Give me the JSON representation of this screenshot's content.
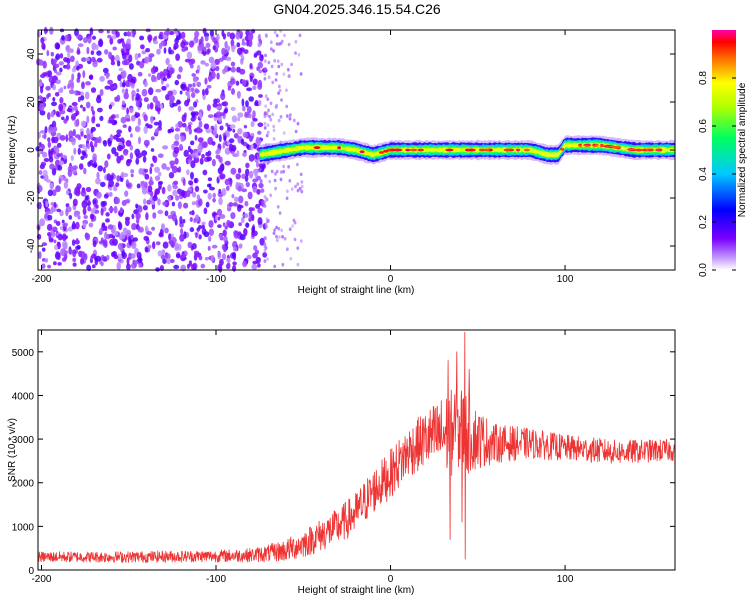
{
  "title": "GN04.2025.346.15.54.C26",
  "chart_data": [
    {
      "id": "spectrogram",
      "type": "heatmap",
      "xlabel": "Height of straight line (km)",
      "ylabel": "Frequency (Hz)",
      "xlim": [
        -202,
        163
      ],
      "ylim": [
        -50,
        50
      ],
      "x_ticks": [
        -200,
        -100,
        0,
        100
      ],
      "x_tick_labels": [
        "-200",
        "-100",
        "0",
        "100"
      ],
      "y_ticks": [
        -40,
        -20,
        0,
        20,
        40
      ],
      "y_tick_labels": [
        "-40",
        "-20",
        "0",
        "20",
        "40"
      ],
      "colorbar": {
        "label": "Normalized spectral amplitude",
        "range": [
          0,
          1
        ],
        "ticks": [
          0,
          0.2,
          0.4,
          0.6,
          0.8
        ],
        "tick_labels": [
          "0.0",
          "0.2",
          "0.4",
          "0.6",
          "0.8"
        ]
      },
      "noise_region_x": [
        -202,
        -72
      ],
      "scattered_edge_x": [
        -72,
        -50
      ],
      "band": {
        "x": [
          -75,
          -50,
          -30,
          -20,
          -10,
          0,
          20,
          40,
          60,
          80,
          90,
          96,
          100,
          120,
          140,
          163
        ],
        "freq_hz": [
          -2,
          1,
          1,
          0,
          -2,
          0,
          0,
          0,
          0,
          0,
          -2,
          -2,
          2,
          2,
          0,
          0
        ],
        "amplitude": [
          0.55,
          0.65,
          0.7,
          0.75,
          0.7,
          0.8,
          0.85,
          0.9,
          0.85,
          0.8,
          0.75,
          0.7,
          0.85,
          0.9,
          0.85,
          0.8
        ]
      }
    },
    {
      "id": "snr",
      "type": "line",
      "xlabel": "Height of straight line (km)",
      "ylabel": "SNR (10 * v/v)",
      "xlim": [
        -202,
        163
      ],
      "ylim": [
        0,
        5500
      ],
      "x_ticks": [
        -200,
        -100,
        0,
        100
      ],
      "x_tick_labels": [
        "-200",
        "-100",
        "0",
        "100"
      ],
      "y_ticks": [
        0,
        1000,
        2000,
        3000,
        4000,
        5000
      ],
      "y_tick_labels": [
        "0",
        "1000",
        "2000",
        "3000",
        "4000",
        "5000"
      ],
      "series": [
        {
          "name": "SNR",
          "color": "#ee3333",
          "envelope_x": [
            -202,
            -150,
            -100,
            -80,
            -70,
            -60,
            -50,
            -40,
            -30,
            -20,
            -10,
            0,
            10,
            20,
            30,
            40,
            50,
            60,
            80,
            100,
            130,
            163
          ],
          "mean": [
            300,
            300,
            320,
            340,
            380,
            450,
            600,
            800,
            1000,
            1300,
            1800,
            2200,
            2700,
            3000,
            3100,
            3200,
            3000,
            2900,
            2900,
            2800,
            2700,
            2750
          ],
          "spread": [
            120,
            130,
            140,
            160,
            200,
            260,
            320,
            380,
            420,
            480,
            520,
            560,
            600,
            650,
            900,
            1100,
            700,
            450,
            350,
            300,
            280,
            250
          ],
          "spikes": [
            {
              "x": 42.5,
              "y": 5450
            },
            {
              "x": 38,
              "y": 5000
            },
            {
              "x": 33,
              "y": 4800
            },
            {
              "x": 45,
              "y": 4600
            },
            {
              "x": 34,
              "y": 700
            },
            {
              "x": 41,
              "y": 1100
            },
            {
              "x": 42.8,
              "y": 250
            }
          ]
        }
      ]
    }
  ]
}
